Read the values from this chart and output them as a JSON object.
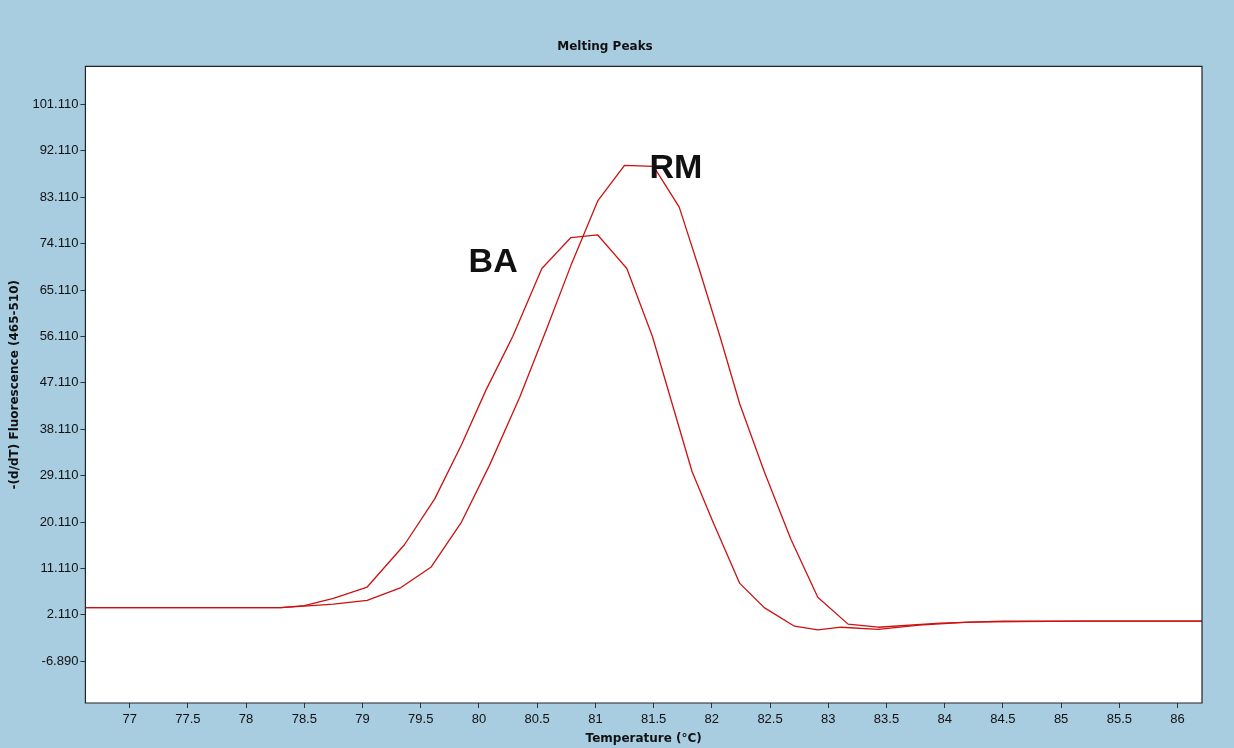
{
  "chart_data": {
    "type": "line",
    "title": "Melting Peaks",
    "xlabel": "Temperature (°C)",
    "ylabel": "-(d/dT) Fluorescence (465-510)",
    "xlim": [
      76.62,
      86.21
    ],
    "xticks": [
      77,
      77.5,
      78,
      78.5,
      79,
      79.5,
      80,
      80.5,
      81,
      81.5,
      82,
      82.5,
      83,
      83.5,
      84,
      84.5,
      85,
      85.5,
      86
    ],
    "ylim": [
      -15,
      108.5
    ],
    "yticks": [
      {
        "value": -6.89,
        "label": "-6.890"
      },
      {
        "value": 2.11,
        "label": "2.110"
      },
      {
        "value": 11.11,
        "label": "11.110"
      },
      {
        "value": 20.11,
        "label": "20.110"
      },
      {
        "value": 29.11,
        "label": "29.110"
      },
      {
        "value": 38.11,
        "label": "38.110"
      },
      {
        "value": 47.11,
        "label": "47.110"
      },
      {
        "value": 56.11,
        "label": "56.110"
      },
      {
        "value": 65.11,
        "label": "65.110"
      },
      {
        "value": 74.11,
        "label": "74.110"
      },
      {
        "value": 83.11,
        "label": "83.110"
      },
      {
        "value": 92.11,
        "label": "92.110"
      },
      {
        "value": 101.11,
        "label": "101.110"
      }
    ],
    "marker": "none",
    "line_style": "solid",
    "legend": false,
    "series": [
      {
        "name": "BA",
        "color": "#cc1111",
        "x": [
          76.62,
          78.3,
          78.5,
          78.75,
          79.04,
          79.36,
          79.62,
          79.85,
          80.06,
          80.29,
          80.54,
          80.79,
          81.02,
          81.27,
          81.49,
          81.66,
          81.83,
          82.01,
          82.24,
          82.45,
          82.71,
          82.91,
          83.11,
          83.43,
          83.78,
          84.21,
          85.2,
          86.21
        ],
        "values": [
          3.5,
          3.5,
          3.9,
          5.3,
          7.5,
          15.7,
          24.6,
          35.1,
          45.7,
          56.1,
          69.3,
          75.3,
          75.8,
          69.3,
          56.1,
          43,
          29.9,
          20.1,
          8.2,
          3.5,
          -0.1,
          -0.8,
          -0.3,
          -0.7,
          0.1,
          0.7,
          0.9,
          0.9
        ]
      },
      {
        "name": "RM",
        "color": "#cc1111",
        "x": [
          76.62,
          78.3,
          78.5,
          78.75,
          79.04,
          79.33,
          79.59,
          79.85,
          80.09,
          80.35,
          80.58,
          80.79,
          81.02,
          81.25,
          81.5,
          81.72,
          81.89,
          82.07,
          82.24,
          82.45,
          82.68,
          82.91,
          83.17,
          83.43,
          83.96,
          84.5,
          86.21
        ],
        "values": [
          3.5,
          3.5,
          3.8,
          4.2,
          4.9,
          7.4,
          11.4,
          20.1,
          31.1,
          44.3,
          57.5,
          69.9,
          82.4,
          89.3,
          89.1,
          81.2,
          69.3,
          56.1,
          43,
          29.9,
          16.7,
          5.5,
          0.3,
          -0.3,
          0.5,
          0.9,
          0.9
        ]
      }
    ]
  }
}
